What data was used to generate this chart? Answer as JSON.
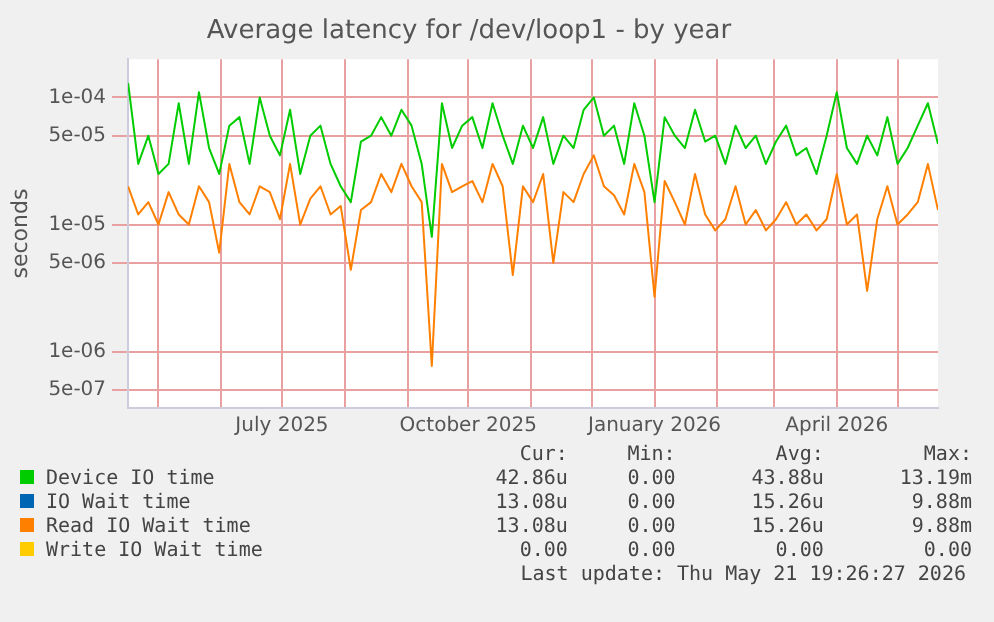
{
  "chart_data": {
    "type": "line",
    "title": "Average latency for /dev/loop1 - by year",
    "ylabel": "seconds",
    "x": [
      "2025-04-16",
      "2025-04-21",
      "2025-04-26",
      "2025-05-01",
      "2025-05-06",
      "2025-05-11",
      "2025-05-16",
      "2025-05-21",
      "2025-05-26",
      "2025-05-31",
      "2025-06-05",
      "2025-06-10",
      "2025-06-15",
      "2025-06-20",
      "2025-06-25",
      "2025-06-30",
      "2025-07-05",
      "2025-07-10",
      "2025-07-15",
      "2025-07-20",
      "2025-07-25",
      "2025-07-30",
      "2025-08-04",
      "2025-08-09",
      "2025-08-14",
      "2025-08-19",
      "2025-08-24",
      "2025-08-29",
      "2025-09-03",
      "2025-09-08",
      "2025-09-13",
      "2025-09-18",
      "2025-09-23",
      "2025-09-28",
      "2025-10-03",
      "2025-10-08",
      "2025-10-13",
      "2025-10-18",
      "2025-10-23",
      "2025-10-28",
      "2025-11-02",
      "2025-11-07",
      "2025-11-12",
      "2025-11-17",
      "2025-11-22",
      "2025-11-27",
      "2025-12-02",
      "2025-12-07",
      "2025-12-12",
      "2025-12-17",
      "2025-12-22",
      "2025-12-27",
      "2026-01-01",
      "2026-01-06",
      "2026-01-11",
      "2026-01-16",
      "2026-01-21",
      "2026-01-26",
      "2026-01-31",
      "2026-02-05",
      "2026-02-10",
      "2026-02-15",
      "2026-02-20",
      "2026-02-25",
      "2026-03-02",
      "2026-03-07",
      "2026-03-12",
      "2026-03-17",
      "2026-03-22",
      "2026-03-27",
      "2026-04-01",
      "2026-04-06",
      "2026-04-11",
      "2026-04-16",
      "2026-04-21",
      "2026-04-26",
      "2026-05-01",
      "2026-05-06",
      "2026-05-11",
      "2026-05-16",
      "2026-05-21"
    ],
    "series": [
      {
        "name": "Device IO time",
        "color": "#00cc00",
        "values": [
          0.00013,
          3e-05,
          5e-05,
          2.5e-05,
          3e-05,
          9e-05,
          3e-05,
          0.00011,
          4e-05,
          2.5e-05,
          6e-05,
          7e-05,
          3e-05,
          0.0001,
          5e-05,
          3.5e-05,
          8e-05,
          2.5e-05,
          5e-05,
          6e-05,
          3e-05,
          2e-05,
          1.5e-05,
          4.5e-05,
          5e-05,
          7e-05,
          5e-05,
          8e-05,
          6e-05,
          3e-05,
          8e-06,
          9e-05,
          4e-05,
          6e-05,
          7e-05,
          4e-05,
          9e-05,
          5e-05,
          3e-05,
          6e-05,
          4e-05,
          7e-05,
          3e-05,
          5e-05,
          4e-05,
          8e-05,
          0.0001,
          5e-05,
          6e-05,
          3e-05,
          9e-05,
          5e-05,
          1.5e-05,
          7e-05,
          5e-05,
          4e-05,
          8e-05,
          4.5e-05,
          5e-05,
          3e-05,
          6e-05,
          4e-05,
          5e-05,
          3e-05,
          4.5e-05,
          6e-05,
          3.5e-05,
          4e-05,
          2.5e-05,
          5e-05,
          0.00011,
          4e-05,
          3e-05,
          5e-05,
          3.5e-05,
          7e-05,
          3e-05,
          4e-05,
          6e-05,
          9e-05,
          4.3e-05
        ]
      },
      {
        "name": "IO Wait time",
        "color": "#0066b3",
        "values": [
          null,
          null,
          null,
          null,
          null,
          null,
          null,
          null,
          null,
          null,
          null,
          null,
          null,
          null,
          null,
          null,
          null,
          null,
          null,
          null,
          null,
          null,
          null,
          null,
          null,
          null,
          null,
          null,
          null,
          null,
          null,
          null,
          null,
          null,
          null,
          null,
          null,
          null,
          null,
          null,
          null,
          null,
          null,
          null,
          null,
          null,
          null,
          null,
          null,
          null,
          null,
          null,
          null,
          null,
          null,
          null,
          null,
          null,
          null,
          null,
          null,
          null,
          null,
          null,
          null,
          null,
          null,
          null,
          null,
          null,
          null,
          null,
          null,
          null,
          null,
          null,
          null,
          null,
          null,
          null,
          null
        ]
      },
      {
        "name": "Read IO Wait time",
        "color": "#ff8000",
        "values": [
          2e-05,
          1.2e-05,
          1.5e-05,
          1e-05,
          1.8e-05,
          1.2e-05,
          1e-05,
          2e-05,
          1.5e-05,
          6e-06,
          3e-05,
          1.5e-05,
          1.2e-05,
          2e-05,
          1.8e-05,
          1.1e-05,
          3e-05,
          1e-05,
          1.6e-05,
          2e-05,
          1.2e-05,
          1.4e-05,
          4.4e-06,
          1.3e-05,
          1.5e-05,
          2.5e-05,
          1.8e-05,
          3e-05,
          2e-05,
          1.5e-05,
          7.7e-07,
          3e-05,
          1.8e-05,
          2e-05,
          2.2e-05,
          1.5e-05,
          3e-05,
          2e-05,
          4e-06,
          2e-05,
          1.5e-05,
          2.5e-05,
          5e-06,
          1.8e-05,
          1.5e-05,
          2.5e-05,
          3.5e-05,
          2e-05,
          1.7e-05,
          1.2e-05,
          3e-05,
          1.8e-05,
          2.7e-06,
          2.2e-05,
          1.5e-05,
          1e-05,
          2.5e-05,
          1.2e-05,
          9e-06,
          1.1e-05,
          2e-05,
          1e-05,
          1.3e-05,
          9e-06,
          1.1e-05,
          1.5e-05,
          1e-05,
          1.2e-05,
          9e-06,
          1.1e-05,
          2.5e-05,
          1e-05,
          1.2e-05,
          3e-06,
          1.1e-05,
          2e-05,
          1e-05,
          1.2e-05,
          1.5e-05,
          3e-05,
          1.3e-05
        ]
      },
      {
        "name": "Write IO Wait time",
        "color": "#ffcc00",
        "values": [
          null,
          null,
          null,
          null,
          null,
          null,
          null,
          null,
          null,
          null,
          null,
          null,
          null,
          null,
          null,
          null,
          null,
          null,
          null,
          null,
          null,
          null,
          null,
          null,
          null,
          null,
          null,
          null,
          null,
          null,
          null,
          null,
          null,
          null,
          null,
          null,
          null,
          null,
          null,
          null,
          null,
          null,
          null,
          null,
          null,
          null,
          null,
          null,
          null,
          null,
          null,
          null,
          null,
          null,
          null,
          null,
          null,
          null,
          null,
          null,
          null,
          null,
          null,
          null,
          null,
          null,
          null,
          null,
          null,
          null,
          null,
          null,
          null,
          null,
          null,
          null,
          null,
          null,
          null,
          null,
          null
        ]
      }
    ],
    "log": "y",
    "ylim": [
      3.6e-07,
      0.0002
    ],
    "yticks": [
      {
        "value": 5e-07,
        "label": "5e-07"
      },
      {
        "value": 1e-06,
        "label": "1e-06"
      },
      {
        "value": 5e-06,
        "label": "5e-06"
      },
      {
        "value": 1e-05,
        "label": "1e-05"
      },
      {
        "value": 5e-05,
        "label": "5e-05"
      },
      {
        "value": 0.0001,
        "label": "1e-04"
      }
    ],
    "xlim": [
      "2025-04-16",
      "2026-05-21"
    ],
    "xticks": [
      {
        "value": "2025-05-01",
        "label": null
      },
      {
        "value": "2025-06-01",
        "label": null
      },
      {
        "value": "2025-07-01",
        "label": "July 2025"
      },
      {
        "value": "2025-08-01",
        "label": null
      },
      {
        "value": "2025-09-01",
        "label": null
      },
      {
        "value": "2025-10-01",
        "label": "October 2025"
      },
      {
        "value": "2025-11-01",
        "label": null
      },
      {
        "value": "2025-12-01",
        "label": null
      },
      {
        "value": "2026-01-01",
        "label": "January 2026"
      },
      {
        "value": "2026-02-01",
        "label": null
      },
      {
        "value": "2026-03-01",
        "label": null
      },
      {
        "value": "2026-04-01",
        "label": "April 2026"
      },
      {
        "value": "2026-05-01",
        "label": null
      }
    ],
    "grid": true,
    "legend": "bottom",
    "marker": "none",
    "line_style": "solid",
    "annotations": [
      "Cur:",
      "Min:",
      "Avg:",
      "Max:",
      "42.86u",
      "0.00",
      "43.88u",
      "13.19m",
      "13.08u",
      "0.00",
      "15.26u",
      "9.88m",
      "13.08u",
      "0.00",
      "15.26u",
      "9.88m",
      "0.00",
      "0.00",
      "0.00",
      "0.00",
      "Last update: Thu May 21 19:26:27 2026"
    ]
  }
}
